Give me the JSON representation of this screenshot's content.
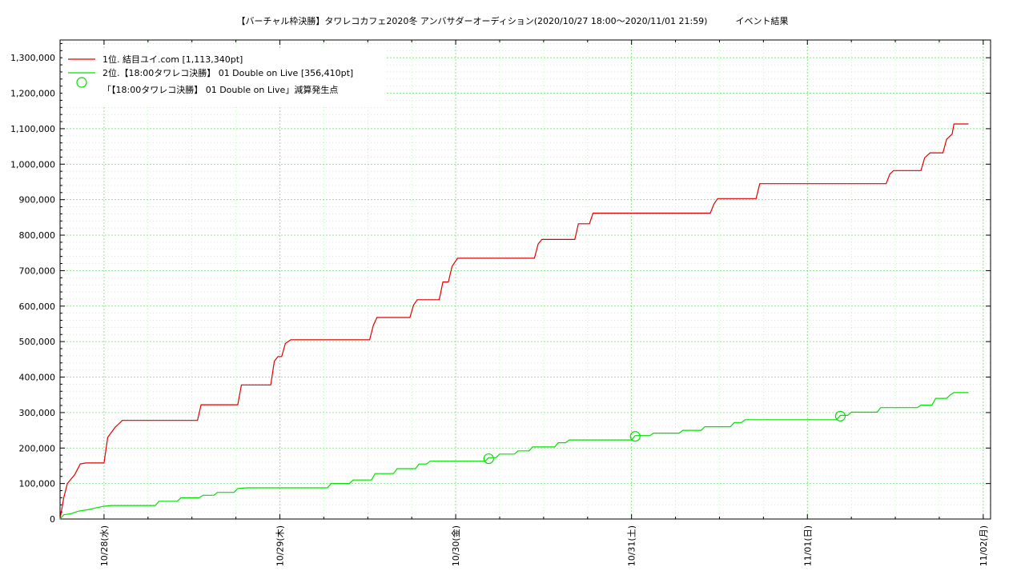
{
  "chart_data": {
    "type": "line",
    "title": "【バーチャル枠決勝】タワレコカフェ2020冬 アンバサダーオーディション(2020/10/27 18:00〜2020/11/01 21:59)          イベント結果",
    "ylim": [
      0,
      1350000
    ],
    "y_ticks": [
      0,
      100000,
      200000,
      300000,
      400000,
      500000,
      600000,
      700000,
      800000,
      900000,
      1000000,
      1100000,
      1200000,
      1300000
    ],
    "y_tick_labels": [
      "0",
      "100,000",
      "200,000",
      "300,000",
      "400,000",
      "500,000",
      "600,000",
      "700,000",
      "800,000",
      "900,000",
      "1,000,000",
      "1,100,000",
      "1,200,000",
      "1,300,000"
    ],
    "x_tick_labels": [
      "10/28(水)",
      "10/29(木)",
      "10/30(金)",
      "10/31(土)",
      "11/01(日)",
      "11/02(月)"
    ],
    "grid": true,
    "legend_position": "top-left",
    "series": [
      {
        "name": "1位. 結目ユイ.com [1,113,340pt]",
        "color": "#e00000",
        "points": [
          [
            "10/27 18:00",
            0
          ],
          [
            "10/27 18:30",
            60000
          ],
          [
            "10/27 19:00",
            100000
          ],
          [
            "10/27 20:00",
            125000
          ],
          [
            "10/27 20:45",
            155000
          ],
          [
            "10/27 21:30",
            158000
          ],
          [
            "10/28 00:00",
            158000
          ],
          [
            "10/28 00:30",
            230000
          ],
          [
            "10/28 01:30",
            258000
          ],
          [
            "10/28 02:30",
            278000
          ],
          [
            "10/28 12:45",
            278000
          ],
          [
            "10/28 13:15",
            322000
          ],
          [
            "10/28 18:15",
            322000
          ],
          [
            "10/28 18:45",
            378000
          ],
          [
            "10/28 22:45",
            378000
          ],
          [
            "10/28 23:15",
            445000
          ],
          [
            "10/28 23:45",
            458000
          ],
          [
            "10/29 00:15",
            458000
          ],
          [
            "10/29 00:45",
            495000
          ],
          [
            "10/29 01:30",
            505000
          ],
          [
            "10/29 12:15",
            505000
          ],
          [
            "10/29 12:45",
            545000
          ],
          [
            "10/29 13:15",
            568000
          ],
          [
            "10/29 17:45",
            568000
          ],
          [
            "10/29 18:15",
            603000
          ],
          [
            "10/29 18:45",
            618000
          ],
          [
            "10/29 21:45",
            618000
          ],
          [
            "10/29 22:15",
            668000
          ],
          [
            "10/29 23:00",
            668000
          ],
          [
            "10/29 23:30",
            712000
          ],
          [
            "10/30 00:15",
            735000
          ],
          [
            "10/30 10:45",
            735000
          ],
          [
            "10/30 11:15",
            775000
          ],
          [
            "10/30 11:45",
            788000
          ],
          [
            "10/30 16:15",
            788000
          ],
          [
            "10/30 16:45",
            832000
          ],
          [
            "10/30 18:15",
            832000
          ],
          [
            "10/30 18:45",
            862000
          ],
          [
            "10/31 10:45",
            862000
          ],
          [
            "10/31 11:15",
            888000
          ],
          [
            "10/31 11:45",
            903000
          ],
          [
            "10/31 17:00",
            903000
          ],
          [
            "10/31 17:30",
            945000
          ],
          [
            "11/01 10:45",
            945000
          ],
          [
            "11/01 11:15",
            972000
          ],
          [
            "11/01 11:45",
            982000
          ],
          [
            "11/01 15:30",
            982000
          ],
          [
            "11/01 16:00",
            1018000
          ],
          [
            "11/01 16:45",
            1032000
          ],
          [
            "11/01 18:30",
            1032000
          ],
          [
            "11/01 19:00",
            1070000
          ],
          [
            "11/01 19:45",
            1085000
          ],
          [
            "11/01 20:00",
            1113340
          ],
          [
            "11/01 21:59",
            1113340
          ]
        ]
      },
      {
        "name": "2位.【18:00タワレコ決勝】 01 Double on Live [356,410pt]",
        "color": "#00e000",
        "points": [
          [
            "10/27 18:00",
            0
          ],
          [
            "10/27 18:30",
            12000
          ],
          [
            "10/27 19:30",
            15000
          ],
          [
            "10/27 20:30",
            22000
          ],
          [
            "10/27 22:00",
            27000
          ],
          [
            "10/27 23:00",
            32000
          ],
          [
            "10/28 00:00",
            36000
          ],
          [
            "10/28 01:00",
            38000
          ],
          [
            "10/28 07:00",
            38000
          ],
          [
            "10/28 07:30",
            50000
          ],
          [
            "10/28 10:00",
            50000
          ],
          [
            "10/28 10:30",
            60000
          ],
          [
            "10/28 13:00",
            60000
          ],
          [
            "10/28 13:30",
            67000
          ],
          [
            "10/28 15:00",
            67000
          ],
          [
            "10/28 15:30",
            75000
          ],
          [
            "10/28 17:45",
            75000
          ],
          [
            "10/28 18:15",
            86000
          ],
          [
            "10/28 19:30",
            88000
          ],
          [
            "10/29 06:30",
            88000
          ],
          [
            "10/29 07:00",
            100000
          ],
          [
            "10/29 09:30",
            100000
          ],
          [
            "10/29 10:00",
            110000
          ],
          [
            "10/29 12:30",
            110000
          ],
          [
            "10/29 13:00",
            128000
          ],
          [
            "10/29 15:30",
            128000
          ],
          [
            "10/29 16:00",
            142000
          ],
          [
            "10/29 18:30",
            142000
          ],
          [
            "10/29 19:00",
            155000
          ],
          [
            "10/29 20:00",
            155000
          ],
          [
            "10/29 20:30",
            163000
          ],
          [
            "10/30 04:00",
            163000
          ],
          [
            "10/30 04:30",
            173000
          ],
          [
            "10/30 05:30",
            173000
          ],
          [
            "10/30 06:00",
            183000
          ],
          [
            "10/30 08:00",
            183000
          ],
          [
            "10/30 08:30",
            192000
          ],
          [
            "10/30 10:00",
            192000
          ],
          [
            "10/30 10:30",
            203000
          ],
          [
            "10/30 13:30",
            203000
          ],
          [
            "10/30 14:00",
            215000
          ],
          [
            "10/30 15:00",
            215000
          ],
          [
            "10/30 15:30",
            223000
          ],
          [
            "10/31 00:00",
            223000
          ],
          [
            "10/31 00:30",
            235000
          ],
          [
            "10/31 02:30",
            235000
          ],
          [
            "10/31 03:00",
            242000
          ],
          [
            "10/31 06:30",
            242000
          ],
          [
            "10/31 07:00",
            250000
          ],
          [
            "10/31 09:30",
            250000
          ],
          [
            "10/31 10:00",
            260000
          ],
          [
            "10/31 13:30",
            260000
          ],
          [
            "10/31 14:00",
            272000
          ],
          [
            "10/31 15:00",
            272000
          ],
          [
            "10/31 15:30",
            280000
          ],
          [
            "11/01 04:00",
            280000
          ],
          [
            "11/01 04:30",
            292000
          ],
          [
            "11/01 05:30",
            292000
          ],
          [
            "11/01 06:00",
            301000
          ],
          [
            "11/01 09:30",
            301000
          ],
          [
            "11/01 10:00",
            314000
          ],
          [
            "11/01 15:00",
            314000
          ],
          [
            "11/01 15:30",
            321000
          ],
          [
            "11/01 17:00",
            321000
          ],
          [
            "11/01 17:30",
            340000
          ],
          [
            "11/01 19:00",
            340000
          ],
          [
            "11/01 19:30",
            350000
          ],
          [
            "11/01 20:00",
            356410
          ],
          [
            "11/01 21:59",
            356410
          ]
        ]
      }
    ],
    "markers": {
      "name": "「【18:00タワレコ決勝】 01 Double on Live」減算発生点",
      "color": "#00e000",
      "points": [
        [
          "10/30 04:30",
          170000
        ],
        [
          "10/31 00:30",
          233000
        ],
        [
          "11/01 04:30",
          290000
        ]
      ]
    }
  }
}
